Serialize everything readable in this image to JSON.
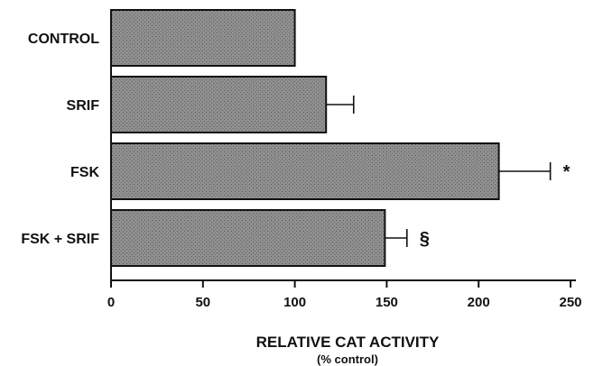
{
  "chart_data": {
    "type": "bar",
    "orientation": "horizontal",
    "categories": [
      "CONTROL",
      "SRIF",
      "FSK",
      "FSK + SRIF"
    ],
    "values": [
      100,
      117,
      211,
      149
    ],
    "errors": [
      null,
      15,
      28,
      12
    ],
    "annotations": [
      "",
      "",
      "*",
      "§"
    ],
    "xlabel": "RELATIVE CAT ACTIVITY",
    "xlabel_sub": "(% control)",
    "xlim": [
      0,
      250
    ],
    "xticks": [
      "0",
      "50",
      "100",
      "150",
      "200",
      "250"
    ],
    "bar_color": "#8a8a8a",
    "grid": false
  }
}
